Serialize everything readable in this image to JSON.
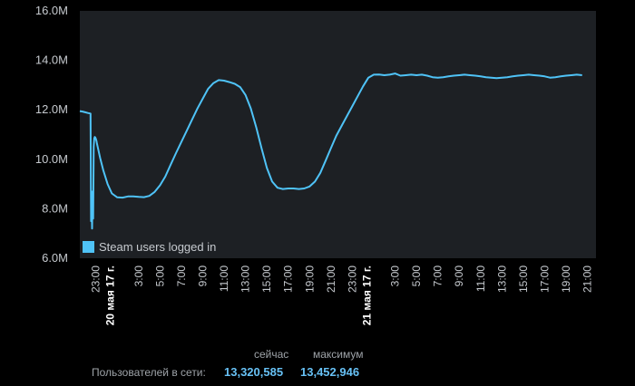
{
  "colors": {
    "background": "#000000",
    "plot_background": "#1d2024",
    "line": "#4fc3f7",
    "value": "#67c1f5"
  },
  "chart_data": {
    "type": "line",
    "title": "",
    "xlabel": "",
    "ylabel": "",
    "ylim": [
      6.0,
      16.0
    ],
    "y_unit": "M",
    "yticks": [
      "6.0M",
      "8.0M",
      "10.0M",
      "12.0M",
      "14.0M",
      "16.0M"
    ],
    "grid": false,
    "legend_position": "bottom-left",
    "x_hours_since_start": [
      0,
      0.25,
      0.5,
      0.75,
      1.0,
      1.05,
      1.1,
      1.15,
      1.2,
      1.25,
      1.3,
      1.35,
      1.4,
      1.45,
      1.5,
      1.55,
      1.6,
      1.7,
      1.9,
      2.2,
      2.6,
      3.0,
      3.5,
      4.0,
      4.5,
      5.0,
      5.5,
      6.0,
      6.5,
      7.0,
      7.5,
      8.0,
      8.5,
      9.0,
      9.5,
      10.0,
      10.5,
      11.0,
      11.5,
      12.0,
      12.5,
      13.0,
      13.5,
      14.0,
      14.5,
      15.0,
      15.5,
      16.0,
      16.5,
      17.0,
      17.5,
      18.0,
      18.5,
      19.0,
      19.5,
      20.0,
      20.5,
      21.0,
      21.5,
      22.0,
      22.5,
      23.0,
      23.5,
      24.0,
      24.5,
      25.0,
      25.5,
      26.0,
      26.5,
      27.0,
      27.5,
      28.0,
      28.5,
      29.0,
      29.5,
      30.0,
      30.5,
      31.0,
      31.5,
      32.0,
      32.5,
      33.0,
      33.5,
      34.0,
      34.5,
      35.0,
      35.5,
      36.0,
      36.5,
      37.0,
      37.5,
      38.0,
      38.5,
      39.0,
      39.5,
      40.0,
      40.5,
      41.0,
      41.5,
      42.0,
      42.5,
      43.0,
      43.5,
      44.0,
      44.5,
      45.0,
      45.5,
      46.0,
      46.5,
      47.0
    ],
    "x_tick_labels": [
      {
        "label": "23:00",
        "x": 1.5
      },
      {
        "label": "20 мая 17 г.",
        "x": 2.85,
        "date": true
      },
      {
        "label": "3:00",
        "x": 5.5
      },
      {
        "label": "5:00",
        "x": 7.5
      },
      {
        "label": "7:00",
        "x": 9.5
      },
      {
        "label": "9:00",
        "x": 11.5
      },
      {
        "label": "11:00",
        "x": 13.5
      },
      {
        "label": "13:00",
        "x": 15.5
      },
      {
        "label": "15:00",
        "x": 17.5
      },
      {
        "label": "17:00",
        "x": 19.5
      },
      {
        "label": "19:00",
        "x": 21.5
      },
      {
        "label": "21:00",
        "x": 23.5
      },
      {
        "label": "23:00",
        "x": 25.5
      },
      {
        "label": "21 мая 17 г.",
        "x": 26.85,
        "date": true
      },
      {
        "label": "3:00",
        "x": 29.5
      },
      {
        "label": "5:00",
        "x": 31.5
      },
      {
        "label": "7:00",
        "x": 33.5
      },
      {
        "label": "9:00",
        "x": 35.5
      },
      {
        "label": "11:00",
        "x": 37.5
      },
      {
        "label": "13:00",
        "x": 39.5
      },
      {
        "label": "15:00",
        "x": 41.5
      },
      {
        "label": "17:00",
        "x": 43.5
      },
      {
        "label": "19:00",
        "x": 45.5
      },
      {
        "label": "21:00",
        "x": 47.5
      }
    ],
    "series": [
      {
        "name": "Steam users logged in",
        "values": [
          11.95,
          11.93,
          11.9,
          11.87,
          11.85,
          7.5,
          8.3,
          7.2,
          8.7,
          7.6,
          10.5,
          10.85,
          10.9,
          10.88,
          10.82,
          10.75,
          10.65,
          10.45,
          10.05,
          9.55,
          9.0,
          8.62,
          8.46,
          8.45,
          8.5,
          8.5,
          8.48,
          8.47,
          8.52,
          8.68,
          8.95,
          9.3,
          9.78,
          10.25,
          10.7,
          11.15,
          11.6,
          12.05,
          12.45,
          12.85,
          13.08,
          13.2,
          13.18,
          13.12,
          13.05,
          12.92,
          12.6,
          12.05,
          11.3,
          10.45,
          9.65,
          9.1,
          8.85,
          8.8,
          8.82,
          8.82,
          8.8,
          8.82,
          8.9,
          9.1,
          9.45,
          9.95,
          10.45,
          10.95,
          11.35,
          11.75,
          12.15,
          12.55,
          12.95,
          13.3,
          13.42,
          13.43,
          13.4,
          13.42,
          13.47,
          13.38,
          13.4,
          13.42,
          13.4,
          13.42,
          13.38,
          13.32,
          13.3,
          13.32,
          13.35,
          13.38,
          13.4,
          13.42,
          13.4,
          13.38,
          13.35,
          13.32,
          13.3,
          13.28,
          13.3,
          13.32,
          13.35,
          13.38,
          13.4,
          13.42,
          13.4,
          13.38,
          13.35,
          13.3,
          13.32,
          13.35,
          13.38,
          13.4,
          13.42,
          13.4
        ]
      }
    ]
  },
  "stats": {
    "header_now": "сейчас",
    "header_max": "максимум",
    "label": "Пользователей в сети:",
    "now_value": "13,320,585",
    "max_value": "13,452,946"
  }
}
